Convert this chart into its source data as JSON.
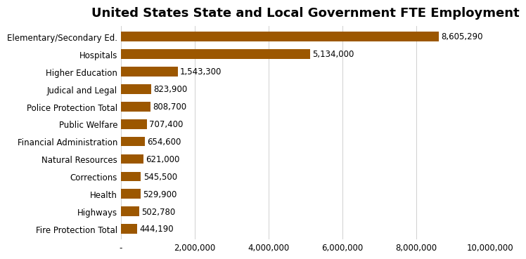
{
  "title": "United States State and Local Government FTE Employment",
  "categories": [
    "Fire Protection Total",
    "Highways",
    "Health",
    "Corrections",
    "Natural Resources",
    "Financial Administration",
    "Public Welfare",
    "Police Protection Total",
    "Judical and Legal",
    "Higher Education",
    "Hospitals",
    "Elementary/Secondary Ed."
  ],
  "values": [
    444190,
    502780,
    529900,
    545500,
    621000,
    654600,
    707400,
    808700,
    823900,
    1543300,
    5134000,
    8605290
  ],
  "labels": [
    "444,190",
    "502,780",
    "529,900",
    "545,500",
    "621,000",
    "654,600",
    "707,400",
    "808,700",
    "823,900",
    "1,543,300",
    "5,134,000",
    "8,605,290"
  ],
  "bar_color": "#9C5700",
  "background_color": "#ffffff",
  "xlim": [
    0,
    10000000
  ],
  "xticks": [
    0,
    2000000,
    4000000,
    6000000,
    8000000,
    10000000
  ],
  "xtick_labels": [
    "-",
    "2,000,000",
    "4,000,000",
    "6,000,000",
    "8,000,000",
    "10,000,000"
  ],
  "title_fontsize": 13,
  "label_fontsize": 8.5,
  "tick_fontsize": 8.5,
  "bar_height": 0.55
}
